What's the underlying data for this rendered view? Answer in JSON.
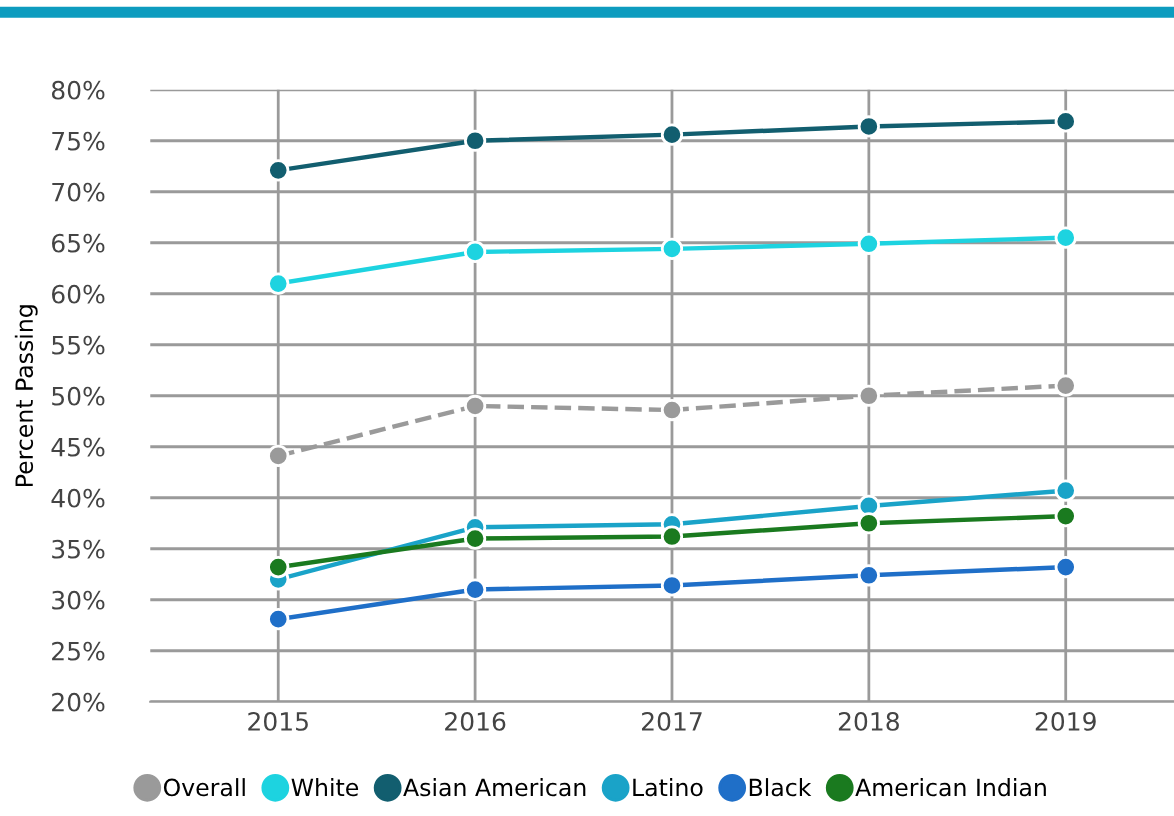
{
  "chart_data": {
    "type": "line",
    "ylabel": "Percent Passing",
    "x": [
      2015,
      2016,
      2017,
      2018,
      2019
    ],
    "series": [
      {
        "name": "Overall",
        "color": "#9a9a9a",
        "line_style": "dashed",
        "values": [
          44.1,
          49.0,
          48.6,
          50.0,
          51.0
        ]
      },
      {
        "name": "White",
        "color": "#1dd3e0",
        "values": [
          61.0,
          64.1,
          64.4,
          64.9,
          65.5
        ]
      },
      {
        "name": "Asian American",
        "color": "#125e6f",
        "values": [
          72.1,
          75.0,
          75.6,
          76.4,
          76.9
        ]
      },
      {
        "name": "Latino",
        "color": "#1aa3c8",
        "values": [
          32.0,
          37.1,
          37.4,
          39.2,
          40.7
        ]
      },
      {
        "name": "Black",
        "color": "#1f6fc8",
        "values": [
          28.1,
          31.0,
          31.4,
          32.4,
          33.2
        ]
      },
      {
        "name": "American Indian",
        "color": "#1a7a1f",
        "values": [
          33.2,
          36.0,
          36.2,
          37.5,
          38.2
        ]
      }
    ],
    "xlim": [
      2014.35,
      2019.55
    ],
    "xticks": [
      2015,
      2016,
      2017,
      2018,
      2019
    ],
    "ylim": [
      20,
      80
    ],
    "yticks": [
      {
        "value": 20,
        "label": "20%"
      },
      {
        "value": 25,
        "label": "25%"
      },
      {
        "value": 30,
        "label": "30%"
      },
      {
        "value": 35,
        "label": "35%"
      },
      {
        "value": 40,
        "label": "40%"
      },
      {
        "value": 45,
        "label": "45%"
      },
      {
        "value": 50,
        "label": "50%"
      },
      {
        "value": 55,
        "label": "55%"
      },
      {
        "value": 60,
        "label": "60%"
      },
      {
        "value": 65,
        "label": "65%"
      },
      {
        "value": 70,
        "label": "70%"
      },
      {
        "value": 75,
        "label": "75%"
      },
      {
        "value": 80,
        "label": "80%"
      }
    ],
    "grid": true,
    "legend": "bottom",
    "marker": "circle",
    "line_style": "solid"
  }
}
